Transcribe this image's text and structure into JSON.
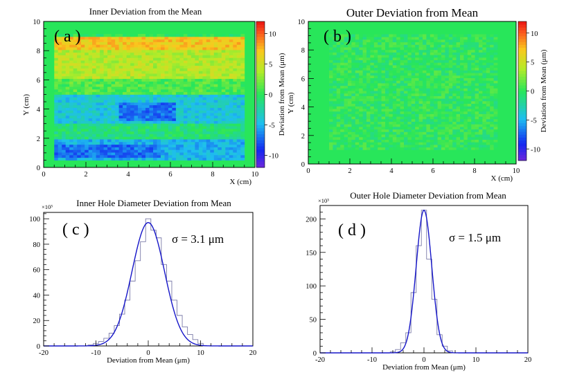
{
  "chart_data": [
    {
      "id": "a",
      "type": "heatmap",
      "title": "Inner Deviation from the Mean",
      "panel_label": "( a )",
      "xlabel": "X (cm)",
      "ylabel": "Y (cm)",
      "xlim": [
        0,
        10
      ],
      "ylim": [
        0,
        10
      ],
      "x_ticks": [
        "0",
        "2",
        "4",
        "6",
        "8",
        "10"
      ],
      "y_ticks": [
        "0",
        "2",
        "4",
        "6",
        "8",
        "10"
      ],
      "colorbar_label": "Deviation from Mean (μm)",
      "colorbar_ticks": [
        "10",
        "5",
        "0",
        "-5",
        "-10"
      ],
      "colorbar_range": [
        -12,
        12
      ],
      "data_region": {
        "x": [
          0.5,
          9.5
        ],
        "y": [
          0.5,
          9.0
        ]
      },
      "bands": [
        {
          "y": [
            8.0,
            9.0
          ],
          "mean_um": 7
        },
        {
          "y": [
            6.0,
            8.0
          ],
          "mean_um": 4
        },
        {
          "y": [
            5.0,
            6.0
          ],
          "mean_um": 1
        },
        {
          "y": [
            3.0,
            5.0
          ],
          "mean_um": -4
        },
        {
          "y": [
            2.0,
            3.0
          ],
          "mean_um": -1
        },
        {
          "y": [
            0.5,
            2.0
          ],
          "mean_um": -5
        }
      ]
    },
    {
      "id": "b",
      "type": "heatmap",
      "title": "Outer Deviation from Mean",
      "panel_label": "( b )",
      "xlabel": "X (cm)",
      "ylabel": "Y (cm)",
      "xlim": [
        0,
        10
      ],
      "ylim": [
        0,
        10
      ],
      "x_ticks": [
        "0",
        "2",
        "4",
        "6",
        "8",
        "10"
      ],
      "y_ticks": [
        "0",
        "2",
        "4",
        "6",
        "8",
        "10"
      ],
      "colorbar_label": "Deviation from Mean (μm)",
      "colorbar_ticks": [
        "10",
        "5",
        "0",
        "-5",
        "-10"
      ],
      "colorbar_range": [
        -12,
        12
      ],
      "data_region": {
        "x": [
          1.0,
          9.0
        ],
        "y": [
          1.0,
          9.0
        ]
      },
      "bands": [
        {
          "y": [
            1.0,
            9.0
          ],
          "mean_um": 0
        }
      ]
    },
    {
      "id": "c",
      "type": "histogram",
      "title": "Inner Hole Diameter Deviation from Mean",
      "panel_label": "( c )",
      "annotation": "σ = 3.1 μm",
      "xlabel": "Deviation from Mean (μm)",
      "ylabel": "",
      "y_multiplier": "×10³",
      "xlim": [
        -20,
        20
      ],
      "ylim": [
        0,
        105
      ],
      "x_ticks": [
        "-20",
        "-10",
        "0",
        "10",
        "20"
      ],
      "y_ticks": [
        "0",
        "20",
        "40",
        "60",
        "80",
        "100"
      ],
      "fit": {
        "mean": 0,
        "sigma": 3.1,
        "amplitude": 97
      },
      "bin_width": 1,
      "bins": {
        "x": [
          -11,
          -10,
          -9,
          -8,
          -7,
          -6,
          -5,
          -4,
          -3,
          -2,
          -1,
          0,
          1,
          2,
          3,
          4,
          5,
          6,
          7,
          8,
          9,
          10
        ],
        "values": [
          0.8,
          2,
          3.5,
          6,
          10,
          16,
          25,
          36,
          51,
          67,
          82,
          100,
          91,
          85,
          64,
          51,
          36,
          24,
          15,
          9,
          5,
          2
        ]
      }
    },
    {
      "id": "d",
      "type": "histogram",
      "title": "Outer Hole Diameter Deviation from Mean",
      "panel_label": "( d )",
      "annotation": "σ = 1.5 μm",
      "xlabel": "Deviation from Mean (μm)",
      "ylabel": "",
      "y_multiplier": "×10³",
      "xlim": [
        -20,
        20
      ],
      "ylim": [
        0,
        220
      ],
      "x_ticks": [
        "-20",
        "-10",
        "0",
        "10",
        "20"
      ],
      "y_ticks": [
        "0",
        "50",
        "100",
        "150",
        "200"
      ],
      "fit": {
        "mean": 0,
        "sigma": 1.5,
        "amplitude": 213
      },
      "bin_width": 1,
      "bins": {
        "x": [
          -6,
          -5,
          -4,
          -3,
          -2,
          -1,
          0,
          1,
          2,
          3,
          4,
          5
        ],
        "values": [
          1.5,
          5,
          15,
          30,
          90,
          160,
          213,
          140,
          80,
          27,
          10,
          3
        ]
      }
    }
  ]
}
